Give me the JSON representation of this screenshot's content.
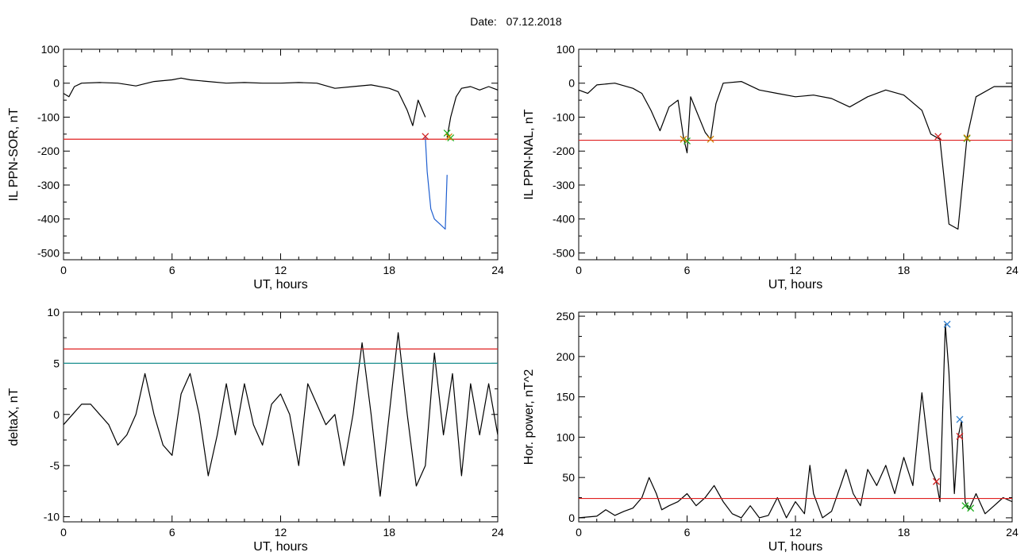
{
  "figure": {
    "date_label": "Date:",
    "date_value": "07.12.2018"
  },
  "colors": {
    "axis": "#000000",
    "data": "#000000",
    "highlight": "#1f5fd0",
    "threshold_red": "#e02020",
    "threshold_teal": "#1a8f8f",
    "marker_red": "#d02020",
    "marker_green": "#20b020",
    "marker_orange": "#d08000",
    "marker_blue": "#3080d0"
  },
  "chart_data": [
    {
      "type": "line",
      "id": "sor",
      "xlabel": "UT, hours",
      "ylabel": "IL PPN-SOR, nT",
      "xlim": [
        0,
        24
      ],
      "ylim": [
        -520,
        100
      ],
      "xticks": [
        0,
        6,
        12,
        18,
        24
      ],
      "yticks": [
        100,
        0,
        -100,
        -200,
        -300,
        -400,
        -500
      ],
      "series": [
        {
          "role": "data",
          "color": "#000000",
          "x": [
            0,
            0.3,
            0.6,
            1,
            2,
            3,
            4,
            5,
            6,
            6.5,
            7,
            8,
            9,
            10,
            11,
            12,
            13,
            14,
            15,
            16,
            17,
            18,
            18.5,
            19,
            19.3,
            19.6,
            20
          ],
          "y": [
            -30,
            -40,
            -10,
            0,
            2,
            0,
            -8,
            5,
            10,
            15,
            10,
            5,
            0,
            2,
            0,
            0,
            2,
            0,
            -15,
            -10,
            -5,
            -15,
            -25,
            -80,
            -125,
            -50,
            -100
          ]
        },
        {
          "role": "highlight",
          "color": "#1f5fd0",
          "x": [
            20,
            20.1,
            20.3,
            20.5,
            20.8,
            21.1,
            21.2
          ],
          "y": [
            -160,
            -260,
            -370,
            -400,
            -415,
            -430,
            -270
          ]
        },
        {
          "role": "data",
          "color": "#000000",
          "x": [
            21.2,
            21.4,
            21.7,
            22,
            22.5,
            23,
            23.5,
            24
          ],
          "y": [
            -160,
            -100,
            -40,
            -15,
            -10,
            -20,
            -10,
            -20
          ]
        }
      ],
      "thresholds": [
        {
          "y": -165,
          "color": "#e02020"
        }
      ],
      "markers": [
        {
          "x": 20,
          "y": -157,
          "color": "#d02020"
        },
        {
          "x": 21.2,
          "y": -147,
          "color": "#20b020"
        },
        {
          "x": 21.4,
          "y": -161,
          "color": "#20b020"
        },
        {
          "x": 21.3,
          "y": -158,
          "color": "#d08000"
        }
      ]
    },
    {
      "type": "line",
      "id": "nal",
      "xlabel": "UT, hours",
      "ylabel": "IL PPN-NAL, nT",
      "xlim": [
        0,
        24
      ],
      "ylim": [
        -520,
        100
      ],
      "xticks": [
        0,
        6,
        12,
        18,
        24
      ],
      "yticks": [
        100,
        0,
        -100,
        -200,
        -300,
        -400,
        -500
      ],
      "series": [
        {
          "role": "data",
          "color": "#000000",
          "x": [
            0,
            0.5,
            1,
            2,
            3,
            3.5,
            4,
            4.5,
            5,
            5.5,
            5.8,
            6,
            6.2,
            6.5,
            7,
            7.3,
            7.6,
            8,
            9,
            10,
            11,
            12,
            13,
            14,
            15,
            16,
            17,
            18,
            19,
            19.5,
            20,
            20.5,
            21,
            21.5,
            22,
            23,
            24
          ],
          "y": [
            -20,
            -30,
            -5,
            0,
            -15,
            -30,
            -80,
            -140,
            -70,
            -50,
            -160,
            -205,
            -40,
            -80,
            -145,
            -165,
            -60,
            0,
            5,
            -20,
            -30,
            -40,
            -35,
            -45,
            -70,
            -40,
            -20,
            -35,
            -80,
            -150,
            -165,
            -415,
            -430,
            -160,
            -40,
            -10,
            -10
          ]
        }
      ],
      "thresholds": [
        {
          "y": -168,
          "color": "#e02020"
        }
      ],
      "markers": [
        {
          "x": 6,
          "y": -170,
          "color": "#20b020"
        },
        {
          "x": 5.8,
          "y": -165,
          "color": "#d08000"
        },
        {
          "x": 7.3,
          "y": -165,
          "color": "#d08000"
        },
        {
          "x": 19.9,
          "y": -157,
          "color": "#d02020"
        },
        {
          "x": 21.5,
          "y": -163,
          "color": "#20b020"
        },
        {
          "x": 21.5,
          "y": -161,
          "color": "#d08000"
        }
      ]
    },
    {
      "type": "line",
      "id": "deltax",
      "xlabel": "UT, hours",
      "ylabel": "deltaX, nT",
      "xlim": [
        0,
        24
      ],
      "ylim": [
        -10.5,
        10
      ],
      "xticks": [
        0,
        6,
        12,
        18,
        24
      ],
      "yticks": [
        10,
        5,
        0,
        -5,
        -10
      ],
      "series": [
        {
          "role": "data",
          "color": "#000000",
          "x": [
            0,
            0.5,
            1,
            1.5,
            2,
            2.5,
            3,
            3.5,
            4,
            4.5,
            5,
            5.5,
            6,
            6.5,
            7,
            7.5,
            8,
            8.5,
            9,
            9.5,
            10,
            10.5,
            11,
            11.5,
            12,
            12.5,
            13,
            13.5,
            14,
            14.5,
            15,
            15.5,
            16,
            16.5,
            17,
            17.5,
            18,
            18.5,
            19,
            19.5,
            20,
            20.5,
            21,
            21.5,
            22,
            22.5,
            23,
            23.5,
            24
          ],
          "y": [
            -1,
            0,
            1,
            1,
            0,
            -1,
            -3,
            -2,
            0,
            4,
            0,
            -3,
            -4,
            2,
            4,
            0,
            -6,
            -2,
            3,
            -2,
            3,
            -1,
            -3,
            1,
            2,
            0,
            -5,
            3,
            1,
            -1,
            0,
            -5,
            0,
            7,
            0,
            -8,
            0,
            8,
            0,
            -7,
            -5,
            6,
            -2,
            4,
            -6,
            3,
            -2,
            3,
            -2
          ]
        }
      ],
      "thresholds": [
        {
          "y": 6.4,
          "color": "#e02020"
        },
        {
          "y": 5,
          "color": "#1a8f8f"
        }
      ],
      "markers": []
    },
    {
      "type": "line",
      "id": "hpower",
      "xlabel": "UT, hours",
      "ylabel": "Hor. power, nT^2",
      "xlim": [
        0,
        24
      ],
      "ylim": [
        -5,
        255
      ],
      "xticks": [
        0,
        6,
        12,
        18,
        24
      ],
      "yticks": [
        250,
        200,
        150,
        100,
        50,
        0
      ],
      "series": [
        {
          "role": "data",
          "color": "#000000",
          "x": [
            0,
            1,
            1.5,
            2,
            2.5,
            3,
            3.5,
            3.9,
            4.3,
            4.6,
            5,
            5.5,
            6,
            6.5,
            7,
            7.5,
            8,
            8.5,
            9,
            9.5,
            10,
            10.5,
            11,
            11.5,
            12,
            12.5,
            12.8,
            13,
            13.5,
            14,
            14.5,
            14.8,
            15.2,
            15.6,
            16,
            16.5,
            17,
            17.5,
            18,
            18.5,
            19,
            19.5,
            19.8,
            20,
            20.3,
            20.5,
            20.8,
            21,
            21.2,
            21.4,
            21.6,
            22,
            22.5,
            23,
            23.5,
            24
          ],
          "y": [
            0,
            2,
            10,
            3,
            8,
            12,
            25,
            50,
            30,
            10,
            15,
            20,
            30,
            15,
            25,
            40,
            20,
            5,
            0,
            15,
            0,
            3,
            25,
            0,
            20,
            5,
            65,
            30,
            0,
            8,
            40,
            60,
            30,
            15,
            60,
            40,
            65,
            30,
            75,
            40,
            155,
            60,
            45,
            20,
            240,
            180,
            30,
            100,
            120,
            20,
            10,
            30,
            5,
            15,
            25,
            20
          ]
        }
      ],
      "thresholds": [
        {
          "y": 24,
          "color": "#e02020"
        }
      ],
      "markers": [
        {
          "x": 20.4,
          "y": 240,
          "color": "#3080d0"
        },
        {
          "x": 21.1,
          "y": 122,
          "color": "#3080d0"
        },
        {
          "x": 21.1,
          "y": 101,
          "color": "#d02020"
        },
        {
          "x": 19.8,
          "y": 45,
          "color": "#d02020"
        },
        {
          "x": 21.4,
          "y": 15,
          "color": "#20b020"
        },
        {
          "x": 21.7,
          "y": 12,
          "color": "#20b020"
        }
      ]
    }
  ]
}
